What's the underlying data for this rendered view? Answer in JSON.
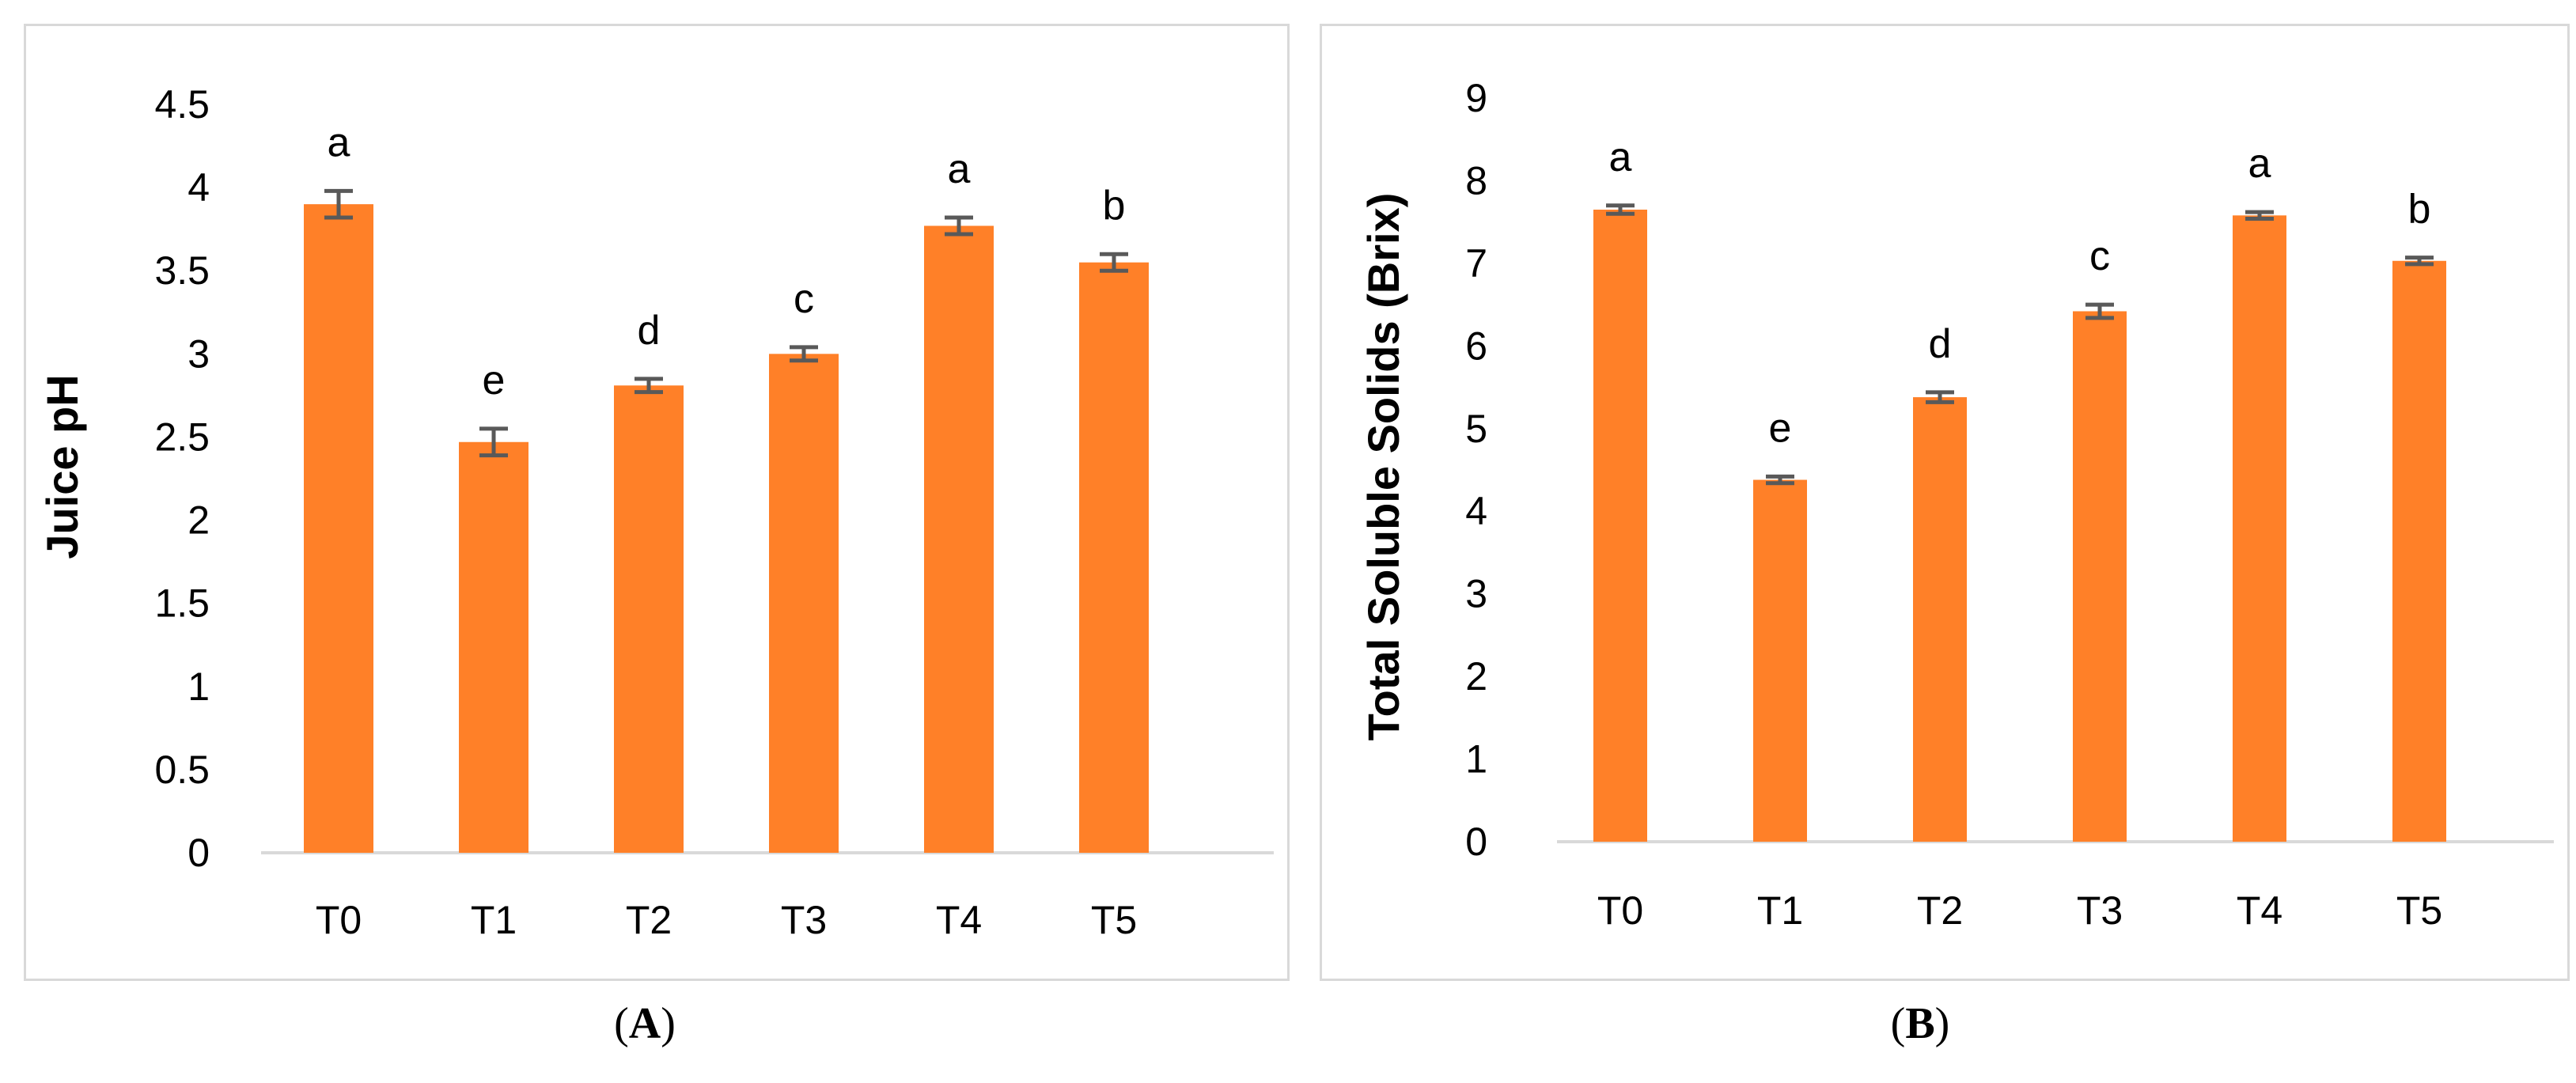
{
  "chart_data": [
    {
      "type": "bar",
      "panel_label": "A",
      "title": "",
      "xlabel": "",
      "ylabel": "Juice pH",
      "categories": [
        "T0",
        "T1",
        "T2",
        "T3",
        "T4",
        "T5"
      ],
      "values": [
        3.9,
        2.47,
        2.81,
        3.0,
        3.77,
        3.55
      ],
      "error": [
        0.08,
        0.08,
        0.04,
        0.04,
        0.05,
        0.05
      ],
      "letters": [
        "a",
        "e",
        "d",
        "c",
        "a",
        "b"
      ],
      "ylim": [
        0,
        4.5
      ],
      "yticks": [
        "0",
        "0.5",
        "1",
        "1.5",
        "2",
        "2.5",
        "3",
        "3.5",
        "4",
        "4.5"
      ],
      "ytick_values": [
        0,
        0.5,
        1,
        1.5,
        2,
        2.5,
        3,
        3.5,
        4,
        4.5
      ],
      "grid": false,
      "legend": "none",
      "bar_color": "#FF8028",
      "error_color": "#595959"
    },
    {
      "type": "bar",
      "panel_label": "B",
      "title": "",
      "xlabel": "",
      "ylabel": "Total Soluble Solids (Brix)",
      "categories": [
        "T0",
        "T1",
        "T2",
        "T3",
        "T4",
        "T5"
      ],
      "values": [
        7.65,
        4.38,
        5.38,
        6.42,
        7.58,
        7.03
      ],
      "error": [
        0.05,
        0.04,
        0.06,
        0.08,
        0.04,
        0.04
      ],
      "letters": [
        "a",
        "e",
        "d",
        "c",
        "a",
        "b"
      ],
      "ylim": [
        0,
        9
      ],
      "yticks": [
        "0",
        "1",
        "2",
        "3",
        "4",
        "5",
        "6",
        "7",
        "8",
        "9"
      ],
      "ytick_values": [
        0,
        1,
        2,
        3,
        4,
        5,
        6,
        7,
        8,
        9
      ],
      "grid": false,
      "legend": "none",
      "bar_color": "#FF8028",
      "error_color": "#595959"
    }
  ],
  "captions": {
    "a": {
      "open": "(",
      "letter": "A",
      "close": ")"
    },
    "b": {
      "open": "(",
      "letter": "B",
      "close": ")"
    }
  }
}
